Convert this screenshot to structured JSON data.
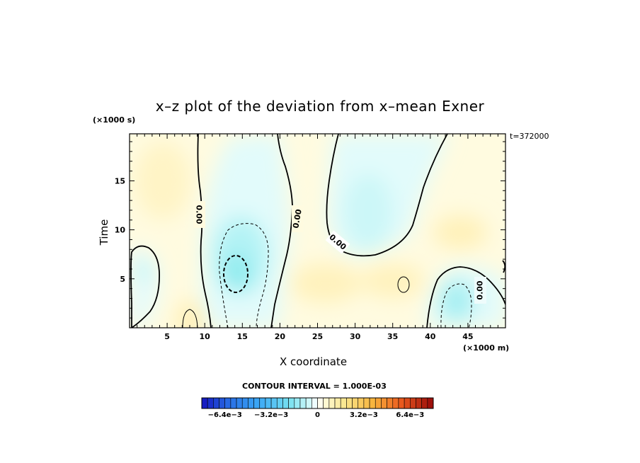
{
  "chart_data": {
    "type": "heatmap",
    "title": "x–z plot of the deviation from x–mean Exner",
    "xlabel": "X coordinate",
    "ylabel": "Time",
    "x_unit_label": "(×1000 m)",
    "y_unit_label": "(×1000 s)",
    "timestamp_label": "t=372000",
    "x_ticks": [
      5,
      10,
      15,
      20,
      25,
      30,
      35,
      40,
      45
    ],
    "y_ticks": [
      5,
      10,
      15
    ],
    "xlim": [
      0,
      50
    ],
    "ylim": [
      0,
      19.8
    ],
    "contour_interval_label": "CONTOUR INTERVAL = 1.000E-03",
    "contour_labels": [
      "0.00",
      "0.00",
      "0.00",
      "0.00"
    ],
    "colorbar": {
      "range": [
        -0.008,
        0.008
      ],
      "tick_labels": [
        "−6.4e−3",
        "−3.2e−3",
        "0",
        "3.2e−3",
        "6.4e−3"
      ],
      "tick_values": [
        -0.0064,
        -0.0032,
        0,
        0.0032,
        0.0064
      ]
    },
    "features": [
      {
        "kind": "minimum",
        "x": 14.2,
        "y": 5.5,
        "value": -0.0028
      },
      {
        "kind": "minimum",
        "x": 15.5,
        "y": 12.5,
        "value": -0.0012
      },
      {
        "kind": "minimum",
        "x": 43.5,
        "y": 2.8,
        "value": -0.0022
      },
      {
        "kind": "minimum",
        "x": 32,
        "y": 12.5,
        "value": -0.0011
      },
      {
        "kind": "minimum",
        "x": 1.5,
        "y": 5.8,
        "value": -0.001
      },
      {
        "kind": "maximum",
        "x": 8,
        "y": 1.5,
        "value": 0.0008
      },
      {
        "kind": "maximum",
        "x": 6,
        "y": 16,
        "value": 0.0004
      },
      {
        "kind": "maximum",
        "x": 27,
        "y": 4.5,
        "value": 0.0006
      },
      {
        "kind": "maximum",
        "x": 36.5,
        "y": 4.8,
        "value": 0.0007
      },
      {
        "kind": "maximum",
        "x": 44,
        "y": 10,
        "value": 0.0006
      }
    ]
  }
}
